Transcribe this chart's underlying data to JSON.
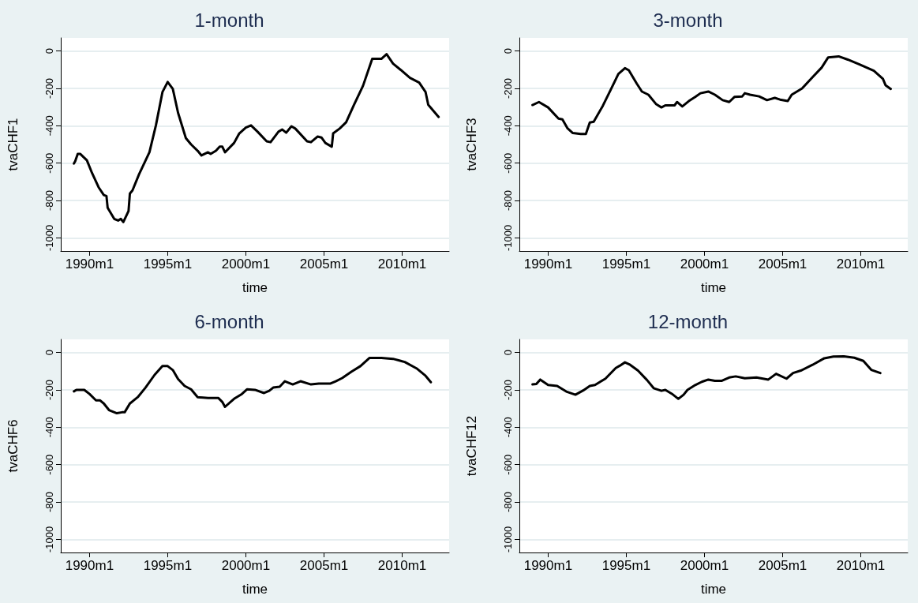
{
  "chart_data": [
    {
      "type": "line",
      "title": "1-month",
      "xlabel": "time",
      "ylabel": "tvaCHF1",
      "color": "#000000",
      "grid": "y",
      "xlim": [
        "1988-03",
        "2013-01"
      ],
      "ylim": [
        -1070,
        70
      ],
      "xticks": [
        {
          "value": "1990-01",
          "label": "1990m1"
        },
        {
          "value": "1995-01",
          "label": "1995m1"
        },
        {
          "value": "2000-01",
          "label": "2000m1"
        },
        {
          "value": "2005-01",
          "label": "2005m1"
        },
        {
          "value": "2010-01",
          "label": "2010m1"
        }
      ],
      "yticks": [
        -1000,
        -800,
        -600,
        -400,
        -200,
        0
      ],
      "x": [
        "1989-01",
        "1989-02",
        "1989-04",
        "1989-06",
        "1989-11",
        "1990-03",
        "1990-08",
        "1990-12",
        "1991-02",
        "1991-03",
        "1991-08",
        "1991-11",
        "1992-01",
        "1992-03",
        "1992-07",
        "1992-08",
        "1992-10",
        "1993-03",
        "1993-11",
        "1994-04",
        "1994-09",
        "1995-01",
        "1995-05",
        "1995-09",
        "1996-03",
        "1996-07",
        "1996-12",
        "1997-03",
        "1997-08",
        "1997-10",
        "1998-02",
        "1998-05",
        "1998-07",
        "1998-09",
        "1999-04",
        "1999-08",
        "2000-01",
        "2000-05",
        "2000-10",
        "2001-05",
        "2001-08",
        "2002-02",
        "2002-05",
        "2002-08",
        "2002-12",
        "2003-03",
        "2003-12",
        "2004-03",
        "2004-08",
        "2004-11",
        "2005-02",
        "2005-07",
        "2005-08",
        "2006-01",
        "2006-06",
        "2006-12",
        "2007-07",
        "2008-02",
        "2008-09",
        "2009-01",
        "2009-06",
        "2009-12",
        "2010-07",
        "2011-02",
        "2011-07",
        "2011-09",
        "2012-05"
      ],
      "values": [
        -602,
        -590,
        -551,
        -551,
        -585,
        -653,
        -729,
        -771,
        -776,
        -839,
        -898,
        -907,
        -898,
        -915,
        -856,
        -763,
        -746,
        -661,
        -542,
        -398,
        -220,
        -166,
        -203,
        -331,
        -466,
        -500,
        -534,
        -559,
        -542,
        -551,
        -534,
        -512,
        -512,
        -542,
        -492,
        -441,
        -410,
        -398,
        -432,
        -483,
        -488,
        -432,
        -420,
        -437,
        -403,
        -415,
        -483,
        -488,
        -458,
        -463,
        -492,
        -512,
        -441,
        -415,
        -381,
        -288,
        -186,
        -42,
        -42,
        -17,
        -68,
        -102,
        -144,
        -169,
        -220,
        -288,
        -353
      ]
    },
    {
      "type": "line",
      "title": "3-month",
      "xlabel": "time",
      "ylabel": "tvaCHF3",
      "color": "#000000",
      "grid": "y",
      "xlim": [
        "1988-03",
        "2013-01"
      ],
      "ylim": [
        -1070,
        70
      ],
      "xticks": [
        {
          "value": "1990-01",
          "label": "1990m1"
        },
        {
          "value": "1995-01",
          "label": "1995m1"
        },
        {
          "value": "2000-01",
          "label": "2000m1"
        },
        {
          "value": "2005-01",
          "label": "2005m1"
        },
        {
          "value": "2010-01",
          "label": "2010m1"
        }
      ],
      "yticks": [
        -1000,
        -800,
        -600,
        -400,
        -200,
        0
      ],
      "x": [
        "1989-01",
        "1989-06",
        "1990-01",
        "1990-09",
        "1990-12",
        "1991-04",
        "1991-08",
        "1992-02",
        "1992-06",
        "1992-09",
        "1992-12",
        "1993-07",
        "1994-01",
        "1994-07",
        "1994-12",
        "1995-03",
        "1995-09",
        "1996-01",
        "1996-06",
        "1996-12",
        "1997-04",
        "1997-07",
        "1998-02",
        "1998-04",
        "1998-08",
        "1999-01",
        "1999-06",
        "1999-10",
        "2000-04",
        "2000-09",
        "2001-03",
        "2001-08",
        "2001-12",
        "2002-06",
        "2002-08",
        "2002-12",
        "2003-07",
        "2004-01",
        "2004-07",
        "2004-11",
        "2005-05",
        "2005-08",
        "2006-04",
        "2006-12",
        "2007-07",
        "2007-12",
        "2008-08",
        "2009-03",
        "2009-12",
        "2010-11",
        "2011-06",
        "2011-08",
        "2011-12"
      ],
      "values": [
        -289,
        -273,
        -302,
        -362,
        -366,
        -414,
        -439,
        -444,
        -444,
        -383,
        -379,
        -294,
        -208,
        -123,
        -92,
        -103,
        -174,
        -217,
        -234,
        -285,
        -302,
        -291,
        -291,
        -273,
        -297,
        -268,
        -246,
        -226,
        -217,
        -234,
        -263,
        -273,
        -246,
        -243,
        -226,
        -234,
        -243,
        -263,
        -251,
        -260,
        -268,
        -234,
        -200,
        -140,
        -89,
        -34,
        -29,
        -46,
        -72,
        -106,
        -149,
        -183,
        -203
      ]
    },
    {
      "type": "line",
      "title": "6-month",
      "xlabel": "time",
      "ylabel": "tvaCHF6",
      "color": "#000000",
      "grid": "y",
      "xlim": [
        "1988-03",
        "2013-01"
      ],
      "ylim": [
        -1070,
        70
      ],
      "xticks": [
        {
          "value": "1990-01",
          "label": "1990m1"
        },
        {
          "value": "1995-01",
          "label": "1995m1"
        },
        {
          "value": "2000-01",
          "label": "2000m1"
        },
        {
          "value": "2005-01",
          "label": "2005m1"
        },
        {
          "value": "2010-01",
          "label": "2010m1"
        }
      ],
      "yticks": [
        -1000,
        -800,
        -600,
        -400,
        -200,
        0
      ],
      "x": [
        "1989-01",
        "1989-03",
        "1989-09",
        "1990-01",
        "1990-06",
        "1990-09",
        "1990-12",
        "1991-04",
        "1991-10",
        "1992-02",
        "1992-04",
        "1992-08",
        "1993-02",
        "1993-08",
        "1994-03",
        "1994-09",
        "1995-01",
        "1995-05",
        "1995-09",
        "1996-02",
        "1996-07",
        "1996-12",
        "1997-08",
        "1998-04",
        "1998-07",
        "1998-09",
        "1999-04",
        "1999-10",
        "2000-02",
        "2000-08",
        "2001-03",
        "2001-07",
        "2001-10",
        "2002-03",
        "2002-07",
        "2003-01",
        "2003-07",
        "2004-03",
        "2004-09",
        "2005-06",
        "2005-10",
        "2006-03",
        "2006-10",
        "2007-05",
        "2007-12",
        "2008-09",
        "2009-06",
        "2010-03",
        "2010-12",
        "2011-07",
        "2011-11"
      ],
      "values": [
        -208,
        -200,
        -200,
        -222,
        -256,
        -256,
        -273,
        -308,
        -325,
        -320,
        -320,
        -273,
        -239,
        -188,
        -120,
        -73,
        -73,
        -94,
        -142,
        -179,
        -197,
        -239,
        -244,
        -244,
        -265,
        -291,
        -248,
        -222,
        -197,
        -200,
        -217,
        -205,
        -188,
        -183,
        -154,
        -171,
        -154,
        -171,
        -166,
        -166,
        -154,
        -137,
        -103,
        -73,
        -29,
        -29,
        -34,
        -51,
        -85,
        -125,
        -159
      ]
    },
    {
      "type": "line",
      "title": "12-month",
      "xlabel": "time",
      "ylabel": "tvaCHF12",
      "color": "#000000",
      "grid": "y",
      "xlim": [
        "1988-03",
        "2013-01"
      ],
      "ylim": [
        -1070,
        70
      ],
      "xticks": [
        {
          "value": "1990-01",
          "label": "1990m1"
        },
        {
          "value": "1995-01",
          "label": "1995m1"
        },
        {
          "value": "2000-01",
          "label": "2000m1"
        },
        {
          "value": "2005-01",
          "label": "2005m1"
        },
        {
          "value": "2010-01",
          "label": "2010m1"
        }
      ],
      "yticks": [
        -1000,
        -800,
        -600,
        -400,
        -200,
        0
      ],
      "x": [
        "1989-01",
        "1989-04",
        "1989-07",
        "1990-01",
        "1990-08",
        "1991-03",
        "1991-10",
        "1992-04",
        "1992-09",
        "1993-01",
        "1993-09",
        "1994-05",
        "1994-08",
        "1994-12",
        "1995-04",
        "1995-10",
        "1996-05",
        "1996-10",
        "1997-04",
        "1997-07",
        "1997-12",
        "1998-05",
        "1998-09",
        "1998-12",
        "1999-06",
        "1999-11",
        "2000-04",
        "2000-09",
        "2001-02",
        "2001-08",
        "2002-01",
        "2002-08",
        "2003-05",
        "2004-02",
        "2004-08",
        "2005-04",
        "2005-09",
        "2006-03",
        "2006-12",
        "2007-09",
        "2008-04",
        "2008-12",
        "2009-08",
        "2010-03",
        "2010-09",
        "2011-04"
      ],
      "values": [
        -171,
        -169,
        -145,
        -174,
        -179,
        -209,
        -226,
        -203,
        -179,
        -174,
        -140,
        -83,
        -71,
        -53,
        -66,
        -97,
        -148,
        -191,
        -205,
        -200,
        -221,
        -248,
        -226,
        -200,
        -174,
        -157,
        -145,
        -152,
        -152,
        -134,
        -128,
        -138,
        -134,
        -145,
        -114,
        -140,
        -110,
        -97,
        -66,
        -31,
        -22,
        -21,
        -28,
        -45,
        -93,
        -110
      ]
    }
  ]
}
